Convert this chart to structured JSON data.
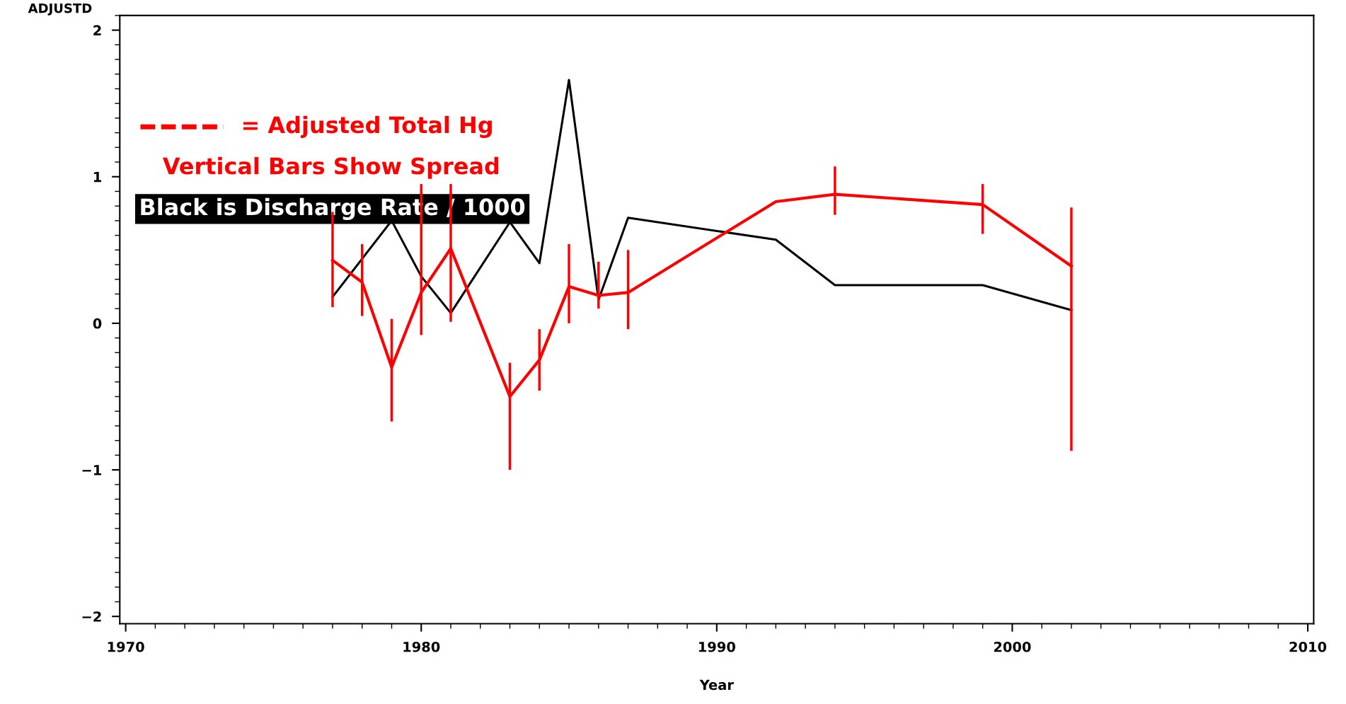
{
  "chart_data": {
    "type": "line",
    "xlabel": "Year",
    "ylabel": "ADJUSTD",
    "xlim": [
      1969.8,
      2010.2
    ],
    "xticks": [
      1970,
      1980,
      1990,
      2000,
      2010
    ],
    "ylim": [
      -2.05,
      2.1
    ],
    "yticks": [
      {
        "value": -2,
        "label": "−2"
      },
      {
        "value": -1,
        "label": "−1"
      },
      0,
      1,
      2
    ],
    "grid": false,
    "marker": "none",
    "line_style": "solid",
    "annotations": [
      "= Adjusted Total Hg",
      "Vertical Bars Show Spread",
      "Black is Discharge Rate / 1000"
    ],
    "series": [
      {
        "color": "#ff0000",
        "x": [
          1977,
          1978,
          1979,
          1980,
          1981,
          1983,
          1984,
          1985,
          1986,
          1987,
          1992,
          1994,
          1999,
          2002
        ],
        "values": [
          0.43,
          0.28,
          -0.3,
          0.21,
          0.51,
          -0.5,
          -0.25,
          0.25,
          0.19,
          0.21,
          0.83,
          0.88,
          0.81,
          0.39
        ],
        "errors": [
          [
            0.11,
            0.76
          ],
          [
            0.05,
            0.54
          ],
          [
            -0.67,
            0.03
          ],
          [
            -0.08,
            0.95
          ],
          [
            0.01,
            0.95
          ],
          [
            -1.0,
            -0.27
          ],
          [
            -0.46,
            -0.04
          ],
          [
            0.0,
            0.54
          ],
          [
            0.1,
            0.42
          ],
          [
            -0.04,
            0.5
          ],
          null,
          [
            0.74,
            1.07
          ],
          [
            0.61,
            0.95
          ],
          [
            -0.87,
            0.79
          ]
        ]
      },
      {
        "color": "#000000",
        "x": [
          1977,
          1979,
          1980,
          1981,
          1983,
          1984,
          1985,
          1986,
          1987,
          1992,
          1994,
          1999,
          2002
        ],
        "values": [
          0.18,
          0.7,
          0.32,
          0.07,
          0.69,
          0.41,
          1.66,
          0.16,
          0.72,
          0.57,
          0.26,
          0.26,
          0.09
        ]
      }
    ]
  }
}
